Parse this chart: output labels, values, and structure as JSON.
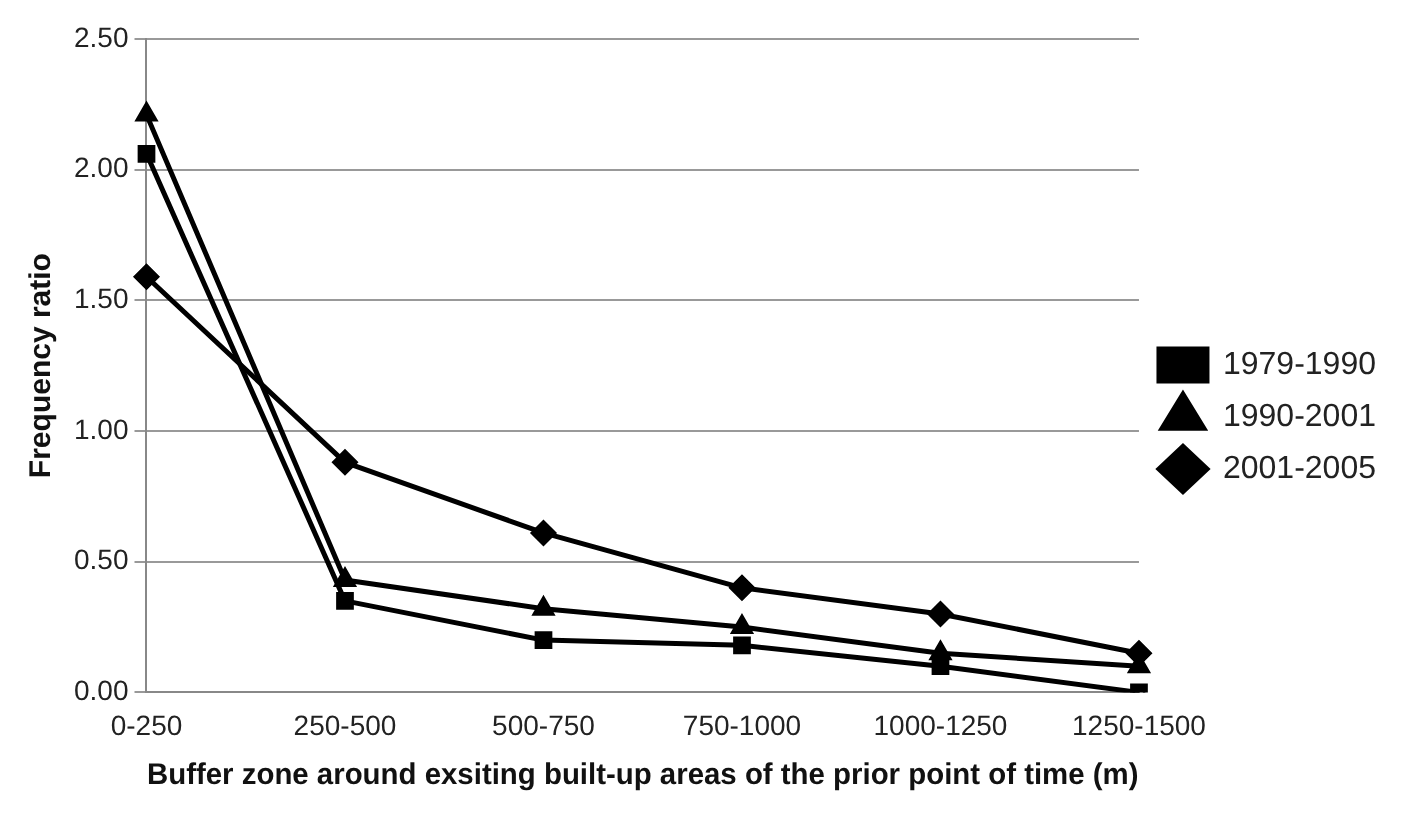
{
  "chart_data": {
    "type": "line",
    "xlabel": "Buffer zone around exsiting built-up areas of the prior point of time (m)",
    "ylabel": "Frequency ratio",
    "categories": [
      "0-250",
      "250-500",
      "500-750",
      "750-1000",
      "1000-1250",
      "1250-1500"
    ],
    "series": [
      {
        "name": "1979-1990",
        "color": "#000000",
        "marker": "square",
        "values": [
          2.06,
          0.35,
          0.2,
          0.18,
          0.1,
          0.0
        ]
      },
      {
        "name": "1990-2001",
        "color": "#000000",
        "marker": "triangle",
        "values": [
          2.21,
          0.43,
          0.32,
          0.25,
          0.15,
          0.1
        ]
      },
      {
        "name": "2001-2005",
        "color": "#000000",
        "marker": "diamond",
        "values": [
          1.59,
          0.88,
          0.61,
          0.4,
          0.3,
          0.15
        ]
      }
    ],
    "ylim": [
      0,
      2.5
    ],
    "yticks": [
      {
        "value": 0,
        "label": "0.00"
      },
      {
        "value": 0.5,
        "label": "0.50"
      },
      {
        "value": 1,
        "label": "1.00"
      },
      {
        "value": 1.5,
        "label": "1.50"
      },
      {
        "value": 2,
        "label": "2.00"
      },
      {
        "value": 2.5,
        "label": "2.50"
      }
    ],
    "grid": "y",
    "legend": "right"
  }
}
